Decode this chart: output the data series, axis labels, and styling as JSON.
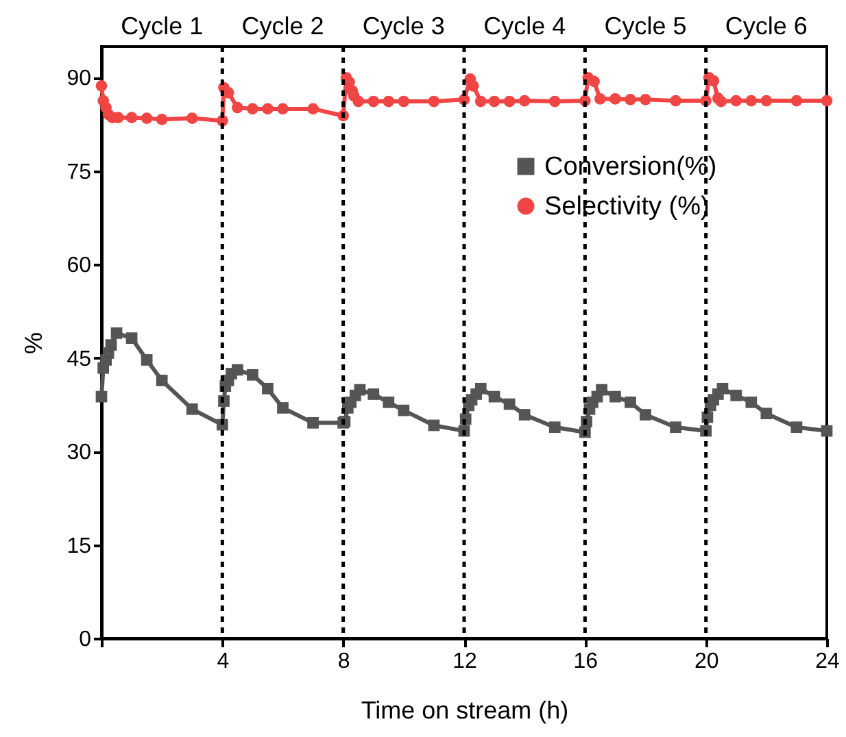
{
  "chart_data": {
    "type": "line",
    "xlabel": "Time on stream (h)",
    "ylabel": "%",
    "xlim": [
      0,
      24
    ],
    "xticks": [
      {
        "value": 0,
        "label": null
      },
      4,
      8,
      12,
      16,
      20,
      24
    ],
    "ylim": [
      0,
      95
    ],
    "yticks": [
      0,
      15,
      30,
      45,
      60,
      75,
      90
    ],
    "grid": false,
    "legend": "top right",
    "line_style": "solid",
    "series": [
      {
        "name": "Conversion(%)",
        "color": "#555555",
        "marker": "square",
        "x": [
          0,
          0.06,
          0.15,
          0.23,
          0.32,
          0.5,
          1,
          1.5,
          2,
          3,
          4,
          4.05,
          4.1,
          4.2,
          4.3,
          4.5,
          5,
          5.5,
          6,
          7,
          8,
          8.05,
          8.15,
          8.25,
          8.4,
          8.55,
          9,
          9.5,
          10,
          11,
          12,
          12.05,
          12.15,
          12.25,
          12.4,
          12.55,
          13,
          13.5,
          14,
          15,
          16,
          16.05,
          16.15,
          16.25,
          16.4,
          16.55,
          17,
          17.5,
          18,
          19,
          20,
          20.05,
          20.15,
          20.25,
          20.4,
          20.55,
          21,
          21.5,
          22,
          23,
          24
        ],
        "values": [
          38.8,
          43.4,
          44.7,
          45.8,
          47.1,
          49,
          48.2,
          44.7,
          41.4,
          36.8,
          34.3,
          38.1,
          40.5,
          41.4,
          42.5,
          43.1,
          42.3,
          40.1,
          37,
          34.6,
          34.6,
          34.8,
          37,
          37.9,
          39,
          39.9,
          39.2,
          37.9,
          36.6,
          34.2,
          33.3,
          35.2,
          37.4,
          38.3,
          39.2,
          40.1,
          38.8,
          37.6,
          35.9,
          33.9,
          33.1,
          34.8,
          36.8,
          37.9,
          38.8,
          39.9,
          38.8,
          37.9,
          35.9,
          33.9,
          33.3,
          35.5,
          37.4,
          38.3,
          39.2,
          40.1,
          39,
          37.9,
          36.1,
          33.9,
          33.3
        ]
      },
      {
        "name": "Selectivity (%)",
        "color": "#f04545",
        "marker": "circle",
        "x": [
          0,
          0.06,
          0.15,
          0.23,
          0.36,
          0.55,
          1,
          1.5,
          2,
          3,
          4,
          4.05,
          4.2,
          4.5,
          5,
          5.5,
          6,
          7,
          8,
          8.1,
          8.2,
          8.3,
          8.35,
          8.5,
          9,
          9.5,
          10,
          11,
          12,
          12.2,
          12.3,
          12.55,
          13,
          13.5,
          14,
          15,
          16,
          16.1,
          16.3,
          16.5,
          17,
          17.5,
          18,
          19,
          20,
          20.1,
          20.25,
          20.4,
          20.5,
          21,
          21.5,
          22,
          23,
          24
        ],
        "values": [
          88.7,
          86.3,
          85.2,
          84.1,
          83.6,
          83.6,
          83.6,
          83.5,
          83.3,
          83.5,
          83.1,
          88.4,
          87.6,
          85.2,
          85,
          85,
          85,
          85,
          83.9,
          90,
          89.3,
          87.9,
          87.1,
          86.2,
          86.2,
          86.2,
          86.2,
          86.2,
          86.5,
          89.8,
          88.7,
          86.2,
          86.2,
          86.2,
          86.3,
          86.2,
          86.3,
          90,
          89.4,
          86.6,
          86.6,
          86.5,
          86.5,
          86.3,
          86.3,
          90,
          89.5,
          86.7,
          86.2,
          86.3,
          86.3,
          86.3,
          86.3,
          86.3
        ]
      }
    ],
    "ref_lines": [
      {
        "axis": "x",
        "value": 4,
        "color": "#000000",
        "line_style": "dashed"
      },
      {
        "axis": "x",
        "value": 8,
        "color": "#000000",
        "line_style": "dashed"
      },
      {
        "axis": "x",
        "value": 12,
        "color": "#000000",
        "line_style": "dashed"
      },
      {
        "axis": "x",
        "value": 16,
        "color": "#000000",
        "line_style": "dashed"
      },
      {
        "axis": "x",
        "value": 20,
        "color": "#000000",
        "line_style": "dashed"
      }
    ],
    "annotations": [
      "Cycle 1",
      "Cycle 2",
      "Cycle 3",
      "Cycle 4",
      "Cycle 5",
      "Cycle 6"
    ]
  }
}
